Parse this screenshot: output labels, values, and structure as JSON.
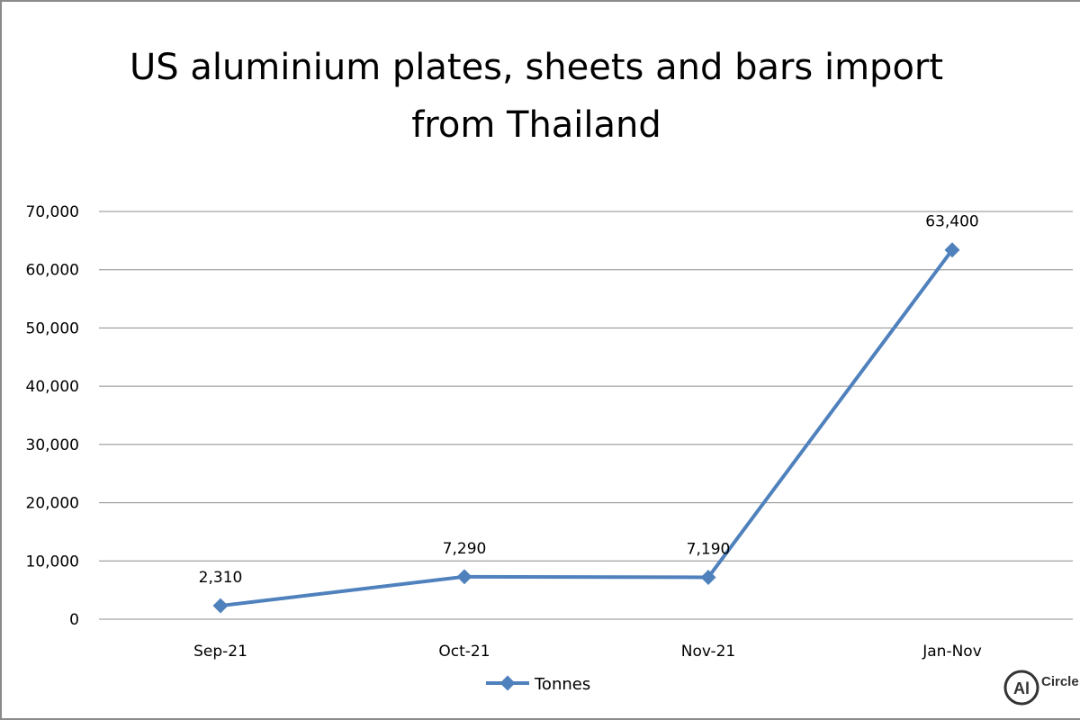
{
  "chart_data": {
    "type": "line",
    "title": [
      "US aluminium plates, sheets and bars import",
      "from Thailand"
    ],
    "categories": [
      "Sep-21",
      "Oct-21",
      "Nov-21",
      "Jan-Nov"
    ],
    "series": [
      {
        "name": "Tonnes",
        "values": [
          2310,
          7290,
          7190,
          63400
        ],
        "data_labels": [
          "2,310",
          "7,290",
          "7,190",
          "63,400"
        ],
        "color": "#4f81bd",
        "marker": "diamond"
      }
    ],
    "ylim": [
      0,
      70000
    ],
    "yticks": [
      0,
      10000,
      20000,
      30000,
      40000,
      50000,
      60000,
      70000
    ],
    "ytick_labels": [
      "0",
      "10,000",
      "20,000",
      "30,000",
      "40,000",
      "50,000",
      "60,000",
      "70,000"
    ],
    "grid": true,
    "legend_position": "bottom-center"
  },
  "colors": {
    "gridline": "#8c8c8c",
    "series": "#4f81bd",
    "frame": "#8a8a8a"
  },
  "logo": {
    "text": "Circle",
    "icon": "alcircle-logo-icon"
  }
}
